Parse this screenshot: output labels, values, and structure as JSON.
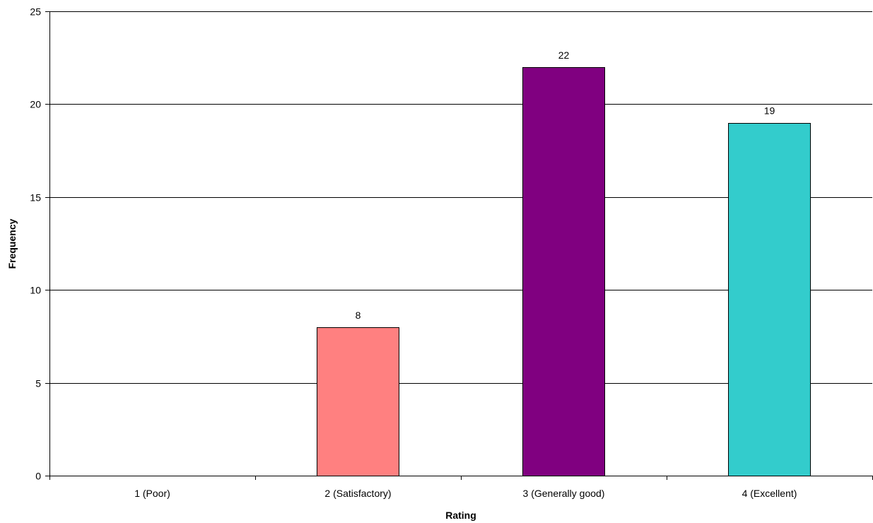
{
  "chart_data": {
    "type": "bar",
    "categories": [
      "1 (Poor)",
      "2 (Satisfactory)",
      "3 (Generally good)",
      "4 (Excellent)"
    ],
    "values": [
      0,
      8,
      22,
      19
    ],
    "bar_colors": [
      "#ffffff",
      "#ff8080",
      "#800080",
      "#33cccc"
    ],
    "data_labels": [
      "",
      "8",
      "22",
      "19"
    ],
    "title": "",
    "xlabel": "Rating",
    "ylabel": "Frequency",
    "ylim": [
      0,
      25
    ],
    "yticks": [
      0,
      5,
      10,
      15,
      20,
      25
    ],
    "grid": true,
    "legend": "none"
  }
}
